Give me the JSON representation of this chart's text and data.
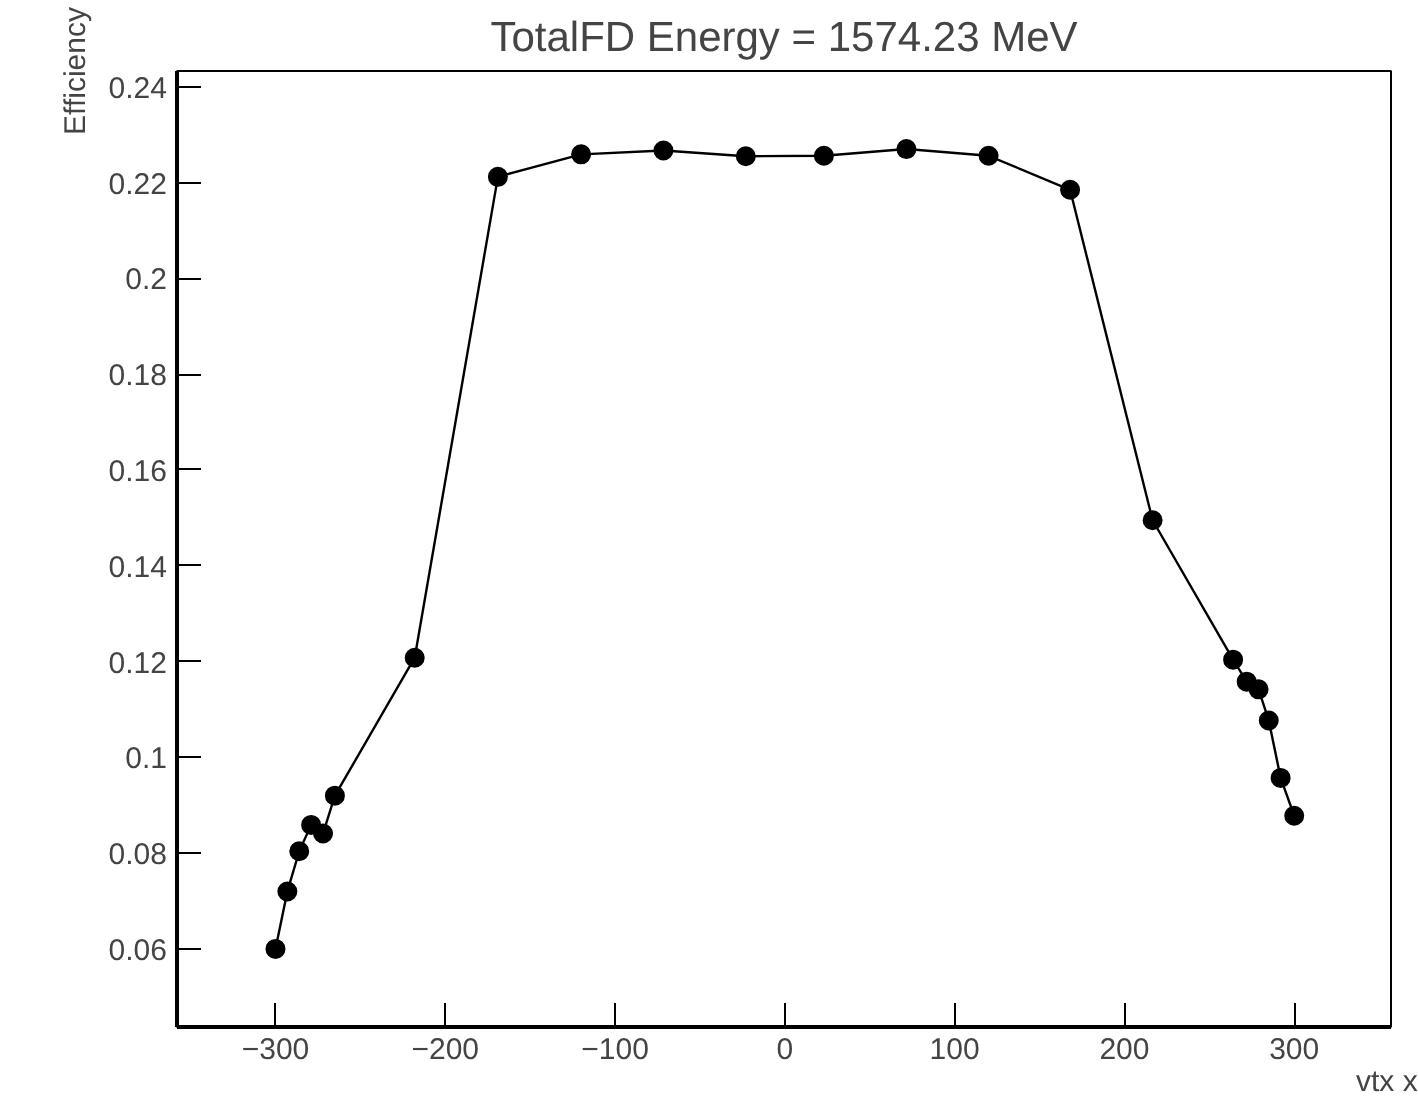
{
  "chart_data": {
    "type": "line",
    "title": "TotalFD Energy = 1574.23 MeV",
    "xlabel": "vtx  x",
    "ylabel": "Efficiency",
    "x": [
      -300,
      -293,
      -286,
      -279,
      -272,
      -265,
      -218,
      -169,
      -120,
      -71.5,
      -23,
      23,
      71.6,
      120,
      168,
      216.6,
      264,
      272,
      279,
      285,
      292,
      300
    ],
    "series": [
      {
        "color": "#000000",
        "values": [
          0.06,
          0.072,
          0.0804,
          0.0859,
          0.0841,
          0.092,
          0.1208,
          0.2212,
          0.2259,
          0.2267,
          0.2255,
          0.2256,
          0.227,
          0.2256,
          0.2185,
          0.1495,
          0.1204,
          0.1158,
          0.1142,
          0.1077,
          0.0957,
          0.0878
        ]
      }
    ],
    "xlim": [
      -358,
      357
    ],
    "ylim": [
      0.0437,
      0.2433
    ],
    "xticks": [
      {
        "value": -300,
        "label": "−300"
      },
      {
        "value": -200,
        "label": "−200"
      },
      {
        "value": -100,
        "label": "−100"
      },
      0,
      100,
      200,
      300
    ],
    "yticks": [
      0.06,
      0.08,
      0.1,
      0.12,
      0.14,
      0.16,
      0.18,
      0.2,
      0.22,
      0.24
    ],
    "marker": "circle",
    "line_style": "solid",
    "grid": false
  }
}
